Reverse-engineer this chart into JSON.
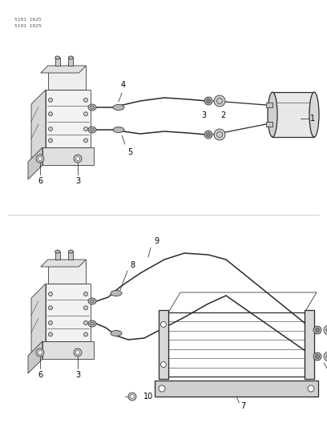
{
  "bg_color": "#ffffff",
  "line_color": "#2a2a2a",
  "gray_fill": "#d8d8d8",
  "light_fill": "#eeeeee",
  "fig_w": 4.08,
  "fig_h": 5.33,
  "dpi": 100,
  "header_text_line1": "5101 1625",
  "header_text_line2": "5191 1025"
}
